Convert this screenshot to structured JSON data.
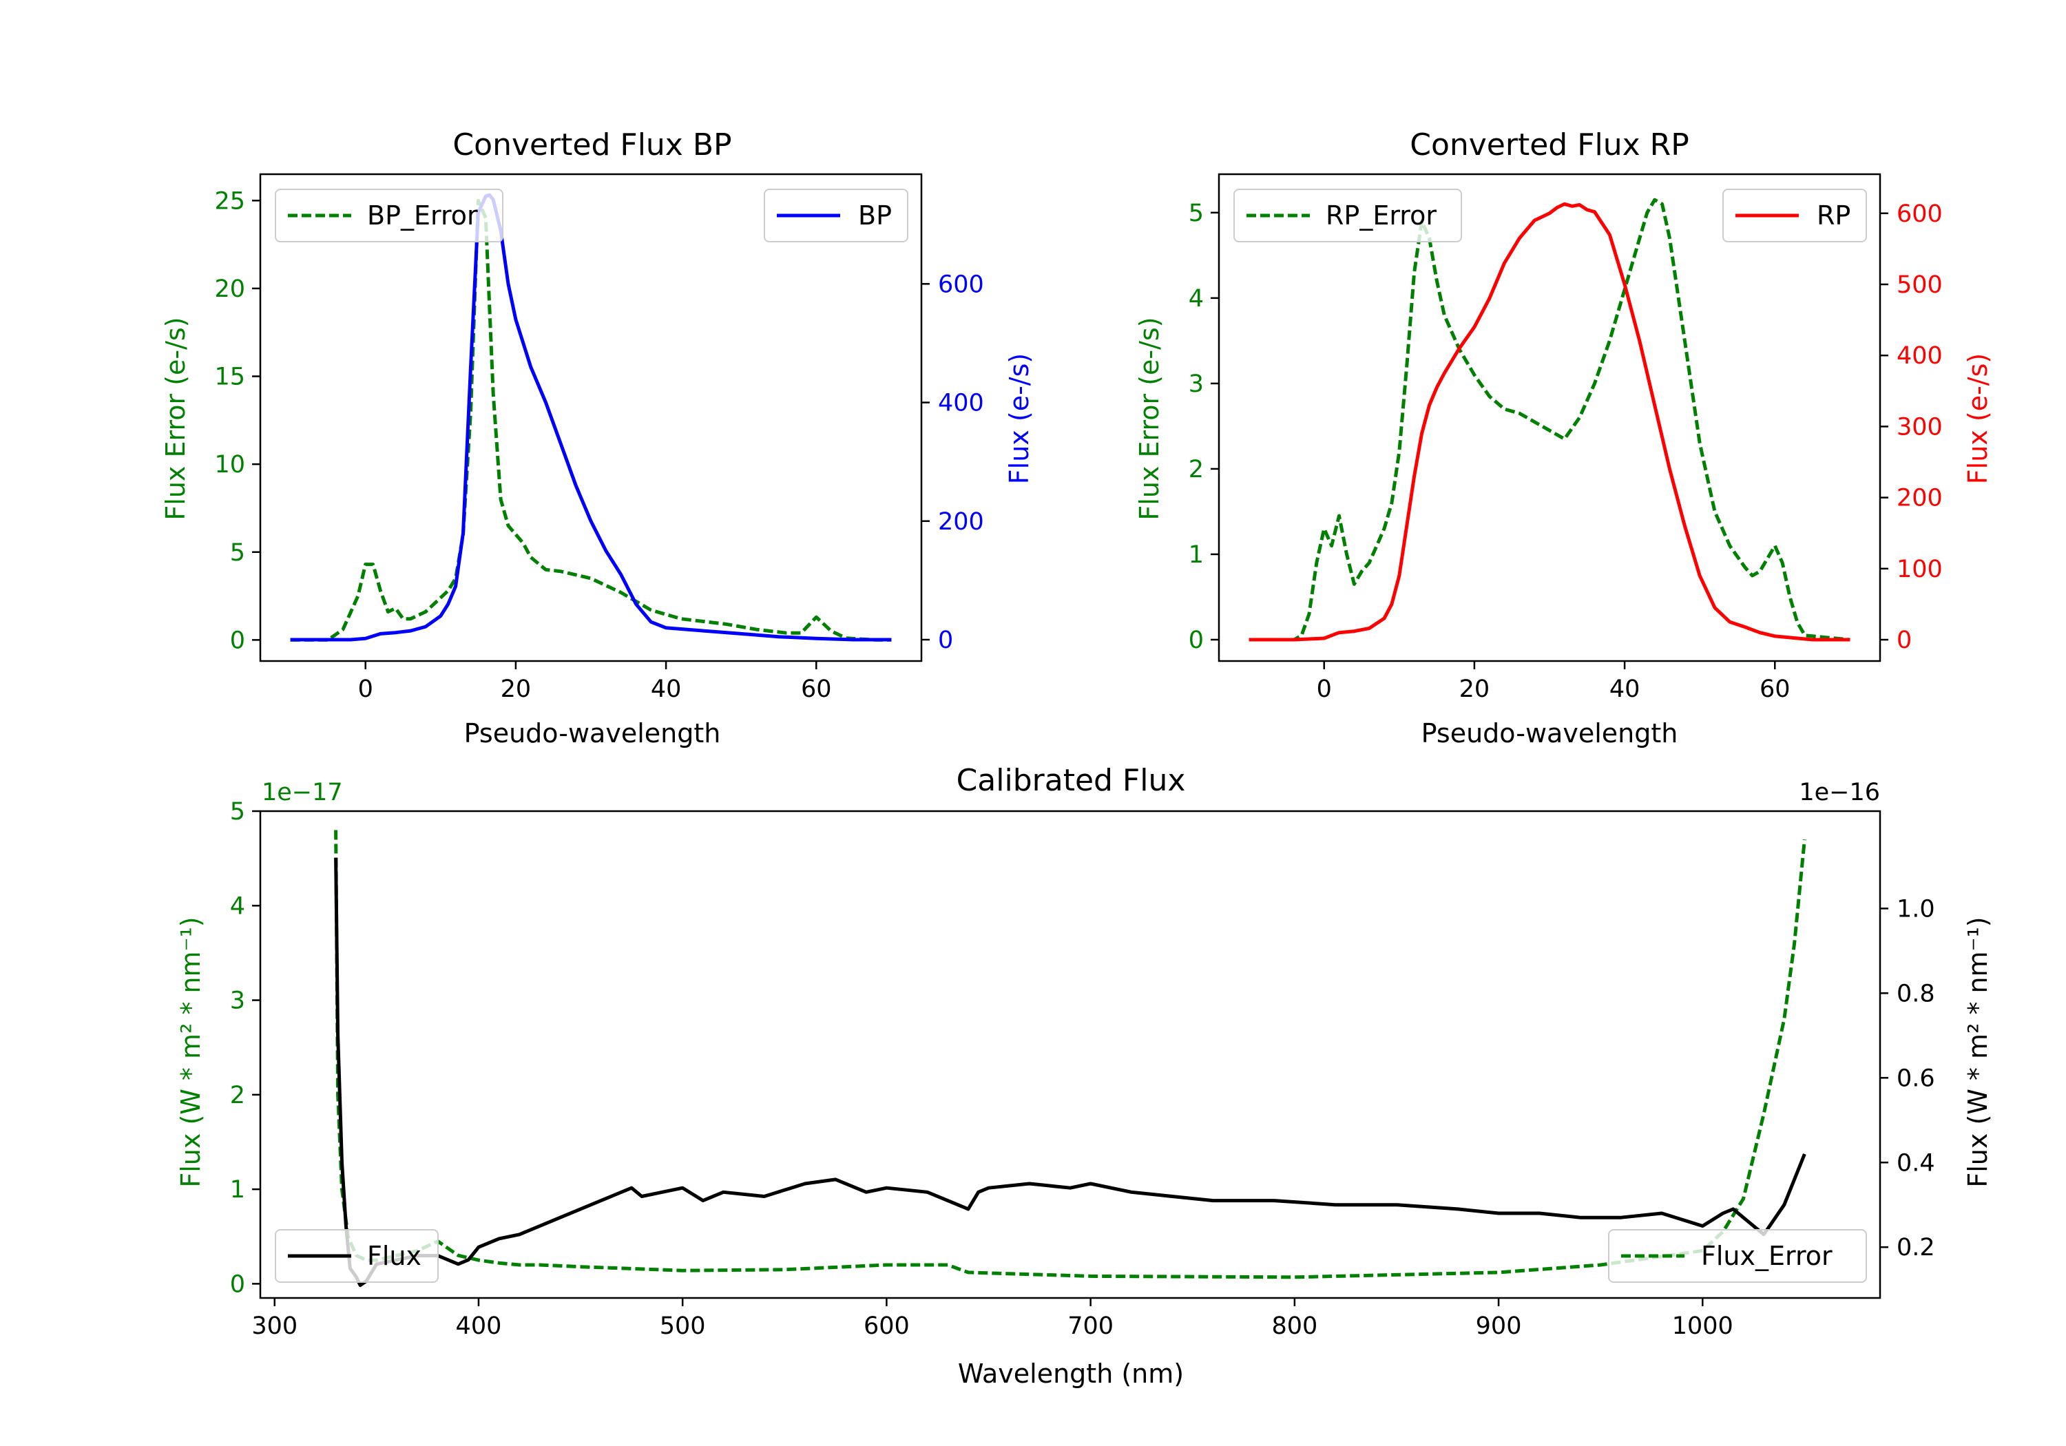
{
  "chart_data": [
    {
      "type": "line",
      "title": "Converted Flux BP",
      "xlabel": "Pseudo-wavelength",
      "xlim": [
        -14,
        74
      ],
      "xticks": [
        0,
        20,
        40,
        60
      ],
      "y_left": {
        "label": "Flux Error (e-/s)",
        "ylim": [
          -1.2,
          26.5
        ],
        "ticks": [
          0,
          5,
          10,
          15,
          20,
          25
        ],
        "color": "#008000"
      },
      "y_right": {
        "label": "Flux (e-/s)",
        "ylim": [
          -36,
          785
        ],
        "ticks": [
          0,
          200,
          400,
          600
        ],
        "color": "#0000ff"
      },
      "legend": [
        {
          "name": "BP_Error",
          "position": "top-left"
        },
        {
          "name": "BP",
          "position": "top-right"
        }
      ],
      "series": [
        {
          "name": "BP_Error",
          "axis": "left",
          "color": "#008000",
          "dash": true,
          "x": [
            -10,
            -5,
            -3,
            -1,
            0,
            1,
            2,
            3,
            4,
            5,
            6,
            8,
            10,
            11,
            12,
            13,
            14,
            15,
            16,
            17,
            18,
            19,
            20,
            21,
            22,
            24,
            26,
            30,
            34,
            38,
            42,
            48,
            52,
            56,
            58,
            60,
            62,
            64,
            68,
            70
          ],
          "y": [
            0,
            0,
            0.6,
            2.5,
            4.3,
            4.3,
            2.8,
            1.6,
            1.8,
            1.2,
            1.2,
            1.6,
            2.4,
            2.8,
            3.5,
            6,
            13,
            25,
            24,
            14,
            8,
            6.5,
            6,
            5.5,
            4.7,
            4,
            3.9,
            3.5,
            2.7,
            1.7,
            1.2,
            0.9,
            0.6,
            0.4,
            0.4,
            1.3,
            0.5,
            0.1,
            0,
            0
          ]
        },
        {
          "name": "BP",
          "axis": "right",
          "color": "#0000ff",
          "dash": false,
          "x": [
            -10,
            -2,
            0,
            2,
            4,
            6,
            8,
            10,
            11,
            12,
            13,
            14,
            15,
            16,
            16.5,
            17,
            18,
            19,
            20,
            22,
            24,
            26,
            28,
            30,
            32,
            34,
            36,
            38,
            40,
            45,
            50,
            55,
            60,
            65,
            70
          ],
          "y": [
            0,
            0,
            2,
            10,
            12,
            15,
            22,
            40,
            60,
            90,
            180,
            460,
            720,
            748,
            750,
            742,
            690,
            600,
            540,
            460,
            400,
            330,
            260,
            200,
            150,
            110,
            60,
            30,
            20,
            15,
            10,
            5,
            2,
            0,
            0
          ]
        }
      ]
    },
    {
      "type": "line",
      "title": "Converted Flux RP",
      "xlabel": "Pseudo-wavelength",
      "xlim": [
        -14,
        74
      ],
      "xticks": [
        0,
        20,
        40,
        60
      ],
      "y_left": {
        "label": "Flux Error (e-/s)",
        "ylim": [
          -0.25,
          5.45
        ],
        "ticks": [
          0,
          1,
          2,
          3,
          4,
          5
        ],
        "color": "#008000"
      },
      "y_right": {
        "label": "Flux (e-/s)",
        "ylim": [
          -30,
          655
        ],
        "ticks": [
          0,
          100,
          200,
          300,
          400,
          500,
          600
        ],
        "color": "#ff0000"
      },
      "legend": [
        {
          "name": "RP_Error",
          "position": "top-left"
        },
        {
          "name": "RP",
          "position": "top-right"
        }
      ],
      "series": [
        {
          "name": "RP_Error",
          "axis": "left",
          "color": "#008000",
          "dash": true,
          "x": [
            -10,
            -4,
            -3,
            -2,
            -1,
            0,
            1,
            2,
            3,
            4,
            5,
            6,
            7,
            8,
            9,
            10,
            11,
            12,
            13,
            14,
            15,
            16,
            18,
            20,
            22,
            24,
            26,
            28,
            30,
            32,
            34,
            36,
            38,
            40,
            42,
            43,
            44,
            45,
            46,
            48,
            50,
            52,
            54,
            56,
            57,
            58,
            59,
            60,
            61,
            62,
            63,
            64,
            70
          ],
          "y": [
            0,
            0,
            0.05,
            0.3,
            0.9,
            1.3,
            1.1,
            1.45,
            1.0,
            0.65,
            0.8,
            0.9,
            1.1,
            1.3,
            1.6,
            2.2,
            3.2,
            4.3,
            4.9,
            4.7,
            4.2,
            3.8,
            3.4,
            3.1,
            2.85,
            2.7,
            2.65,
            2.55,
            2.45,
            2.35,
            2.6,
            3.0,
            3.5,
            4.1,
            4.7,
            5.0,
            5.15,
            5.1,
            4.7,
            3.5,
            2.3,
            1.5,
            1.1,
            0.85,
            0.75,
            0.8,
            0.95,
            1.1,
            0.9,
            0.5,
            0.2,
            0.05,
            0
          ]
        },
        {
          "name": "RP",
          "axis": "right",
          "color": "#ff0000",
          "dash": false,
          "x": [
            -10,
            -4,
            0,
            2,
            4,
            6,
            8,
            9,
            10,
            11,
            12,
            13,
            14,
            15,
            16,
            18,
            20,
            22,
            24,
            26,
            28,
            30,
            31,
            32,
            33,
            34,
            35,
            36,
            38,
            40,
            42,
            44,
            46,
            48,
            50,
            52,
            54,
            56,
            58,
            60,
            65,
            70
          ],
          "y": [
            0,
            0,
            2,
            10,
            12,
            16,
            30,
            50,
            90,
            160,
            230,
            290,
            330,
            355,
            375,
            410,
            440,
            480,
            530,
            565,
            590,
            600,
            608,
            613,
            610,
            612,
            605,
            602,
            570,
            500,
            420,
            330,
            240,
            160,
            90,
            45,
            25,
            18,
            10,
            5,
            0,
            0
          ]
        }
      ]
    },
    {
      "type": "line",
      "title": "Calibrated Flux",
      "xlabel": "Wavelength (nm)",
      "xlim": [
        293,
        1087
      ],
      "xticks": [
        300,
        400,
        500,
        600,
        700,
        800,
        900,
        1000
      ],
      "y_left": {
        "label": "Flux (W * m² * nm⁻¹)",
        "ylim": [
          -0.15,
          5
        ],
        "ticks": [
          0,
          1,
          2,
          3,
          4,
          5
        ],
        "scale_label": "1e−17",
        "color": "#008000"
      },
      "y_right": {
        "label": "Flux (W * m² * nm⁻¹)",
        "ylim": [
          0.08,
          1.23
        ],
        "ticks": [
          0.2,
          0.4,
          0.6,
          0.8,
          1.0
        ],
        "tick_labels": [
          "0.2",
          "0.4",
          "0.6",
          "0.8",
          "1.0"
        ],
        "scale_label": "1e−16",
        "color": "#000000"
      },
      "legend": [
        {
          "name": "Flux",
          "position": "bottom-left"
        },
        {
          "name": "Flux_Error",
          "position": "bottom-right"
        }
      ],
      "series": [
        {
          "name": "Flux_Error",
          "axis": "left",
          "color": "#008000",
          "dash": true,
          "x": [
            330,
            331,
            333,
            336,
            340,
            345,
            350,
            360,
            370,
            380,
            390,
            400,
            410,
            420,
            430,
            450,
            500,
            550,
            600,
            630,
            640,
            700,
            800,
            900,
            950,
            1000,
            1010,
            1020,
            1030,
            1040,
            1045,
            1050
          ],
          "y": [
            4.8,
            2.0,
            1.0,
            0.5,
            0.3,
            0.25,
            0.25,
            0.3,
            0.35,
            0.45,
            0.3,
            0.25,
            0.22,
            0.2,
            0.2,
            0.18,
            0.14,
            0.15,
            0.2,
            0.2,
            0.12,
            0.08,
            0.07,
            0.12,
            0.2,
            0.35,
            0.55,
            0.9,
            1.8,
            2.8,
            3.6,
            4.7
          ]
        },
        {
          "name": "Flux",
          "axis": "right",
          "color": "#000000",
          "dash": false,
          "x": [
            330,
            331,
            333,
            335,
            337,
            340,
            342,
            345,
            350,
            360,
            370,
            380,
            390,
            395,
            400,
            410,
            420,
            440,
            460,
            475,
            480,
            490,
            500,
            510,
            520,
            540,
            560,
            575,
            590,
            600,
            620,
            640,
            645,
            650,
            670,
            690,
            700,
            720,
            740,
            760,
            790,
            820,
            850,
            880,
            900,
            920,
            940,
            960,
            980,
            1000,
            1010,
            1015,
            1020,
            1030,
            1040,
            1050
          ],
          "y": [
            1.12,
            0.7,
            0.4,
            0.25,
            0.15,
            0.13,
            0.11,
            0.12,
            0.16,
            0.17,
            0.18,
            0.18,
            0.16,
            0.17,
            0.2,
            0.22,
            0.23,
            0.27,
            0.31,
            0.34,
            0.32,
            0.33,
            0.34,
            0.31,
            0.33,
            0.32,
            0.35,
            0.36,
            0.33,
            0.34,
            0.33,
            0.29,
            0.33,
            0.34,
            0.35,
            0.34,
            0.35,
            0.33,
            0.32,
            0.31,
            0.31,
            0.3,
            0.3,
            0.29,
            0.28,
            0.28,
            0.27,
            0.27,
            0.28,
            0.25,
            0.28,
            0.29,
            0.27,
            0.23,
            0.3,
            0.42
          ]
        }
      ]
    }
  ]
}
